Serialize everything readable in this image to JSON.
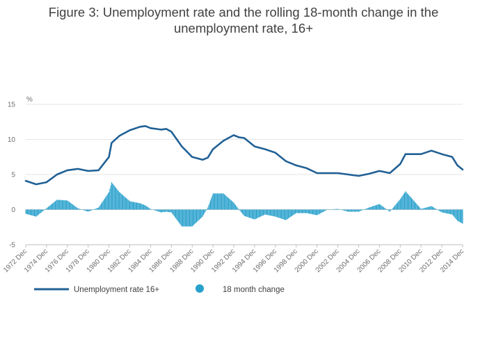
{
  "chart_data": {
    "type": "line+bar",
    "title_lines": [
      "Figure 3: Unemployment rate and the rolling 18-month change in the",
      "unemployment rate, 16+"
    ],
    "y_unit": "%",
    "ylim": [
      -5,
      15
    ],
    "y_ticks": [
      -5,
      0,
      5,
      10,
      15
    ],
    "x_ticks": [
      "1972 Dec",
      "1974 Dec",
      "1976 Dec",
      "1978 Dec",
      "1980 Dec",
      "1982 Dec",
      "1984 Dec",
      "1986 Dec",
      "1988 Dec",
      "1990 Dec",
      "1992 Dec",
      "1994 Dec",
      "1996 Dec",
      "1998 Dec",
      "2000 Dec",
      "2002 Dec",
      "2004 Dec",
      "2006 Dec",
      "2008 Dec",
      "2010 Dec",
      "2012 Dec",
      "2014 Dec"
    ],
    "x_range": [
      "1972 Dec",
      "2014 Dec"
    ],
    "grid": true,
    "legend_position": "bottom-left",
    "series": [
      {
        "name": "Unemployment rate 16+",
        "kind": "line",
        "color": "#206095",
        "points": [
          [
            "1972 Dec",
            4.1
          ],
          [
            "1973 Dec",
            3.6
          ],
          [
            "1974 Dec",
            3.9
          ],
          [
            "1975 Dec",
            5.0
          ],
          [
            "1976 Dec",
            5.6
          ],
          [
            "1977 Dec",
            5.8
          ],
          [
            "1978 Dec",
            5.5
          ],
          [
            "1979 Dec",
            5.6
          ],
          [
            "1980 Dec",
            7.5
          ],
          [
            "1981 Mar",
            9.5
          ],
          [
            "1981 Dec",
            10.5
          ],
          [
            "1982 Dec",
            11.3
          ],
          [
            "1983 Dec",
            11.8
          ],
          [
            "1984 Jun",
            11.9
          ],
          [
            "1984 Dec",
            11.6
          ],
          [
            "1985 Dec",
            11.4
          ],
          [
            "1986 Jun",
            11.5
          ],
          [
            "1986 Dec",
            11.1
          ],
          [
            "1987 Dec",
            9.0
          ],
          [
            "1988 Dec",
            7.5
          ],
          [
            "1989 Dec",
            7.1
          ],
          [
            "1990 Jun",
            7.4
          ],
          [
            "1990 Dec",
            8.6
          ],
          [
            "1991 Dec",
            9.8
          ],
          [
            "1992 Dec",
            10.6
          ],
          [
            "1993 Jun",
            10.3
          ],
          [
            "1993 Dec",
            10.2
          ],
          [
            "1994 Dec",
            9.0
          ],
          [
            "1995 Dec",
            8.6
          ],
          [
            "1996 Dec",
            8.1
          ],
          [
            "1997 Dec",
            6.9
          ],
          [
            "1998 Dec",
            6.3
          ],
          [
            "1999 Dec",
            5.9
          ],
          [
            "2000 Dec",
            5.2
          ],
          [
            "2001 Dec",
            5.2
          ],
          [
            "2002 Dec",
            5.2
          ],
          [
            "2003 Dec",
            5.0
          ],
          [
            "2004 Dec",
            4.8
          ],
          [
            "2005 Dec",
            5.1
          ],
          [
            "2006 Dec",
            5.5
          ],
          [
            "2007 Dec",
            5.2
          ],
          [
            "2008 Dec",
            6.5
          ],
          [
            "2009 Jun",
            7.9
          ],
          [
            "2009 Dec",
            7.9
          ],
          [
            "2010 Dec",
            7.9
          ],
          [
            "2011 Dec",
            8.4
          ],
          [
            "2012 Dec",
            7.9
          ],
          [
            "2013 Dec",
            7.5
          ],
          [
            "2014 Jun",
            6.3
          ],
          [
            "2014 Dec",
            5.7
          ]
        ]
      },
      {
        "name": "18 month change",
        "kind": "bar",
        "color": "#27a0cc",
        "points": [
          [
            "1972 Dec",
            -0.6
          ],
          [
            "1973 Dec",
            -1.0
          ],
          [
            "1974 Dec",
            0.2
          ],
          [
            "1975 Dec",
            1.4
          ],
          [
            "1976 Dec",
            1.3
          ],
          [
            "1977 Dec",
            0.2
          ],
          [
            "1978 Dec",
            -0.3
          ],
          [
            "1979 Dec",
            0.3
          ],
          [
            "1980 Dec",
            2.5
          ],
          [
            "1981 Mar",
            3.9
          ],
          [
            "1981 Dec",
            2.5
          ],
          [
            "1982 Dec",
            1.2
          ],
          [
            "1983 Dec",
            0.9
          ],
          [
            "1984 Jun",
            0.6
          ],
          [
            "1984 Dec",
            0.1
          ],
          [
            "1985 Dec",
            -0.4
          ],
          [
            "1986 Jun",
            -0.3
          ],
          [
            "1986 Dec",
            -0.4
          ],
          [
            "1987 Dec",
            -2.4
          ],
          [
            "1988 Dec",
            -2.4
          ],
          [
            "1989 Dec",
            -1.0
          ],
          [
            "1990 Jun",
            0.3
          ],
          [
            "1990 Dec",
            2.3
          ],
          [
            "1991 Dec",
            2.3
          ],
          [
            "1992 Dec",
            1.0
          ],
          [
            "1993 Jun",
            0.0
          ],
          [
            "1993 Dec",
            -0.9
          ],
          [
            "1994 Dec",
            -1.4
          ],
          [
            "1995 Dec",
            -0.7
          ],
          [
            "1996 Dec",
            -1.0
          ],
          [
            "1997 Dec",
            -1.5
          ],
          [
            "1998 Dec",
            -0.5
          ],
          [
            "1999 Dec",
            -0.5
          ],
          [
            "2000 Dec",
            -0.8
          ],
          [
            "2001 Dec",
            0.0
          ],
          [
            "2002 Dec",
            0.1
          ],
          [
            "2003 Dec",
            -0.3
          ],
          [
            "2004 Dec",
            -0.3
          ],
          [
            "2005 Dec",
            0.3
          ],
          [
            "2006 Dec",
            0.8
          ],
          [
            "2007 Dec",
            -0.3
          ],
          [
            "2008 Dec",
            1.5
          ],
          [
            "2009 Jun",
            2.6
          ],
          [
            "2009 Dec",
            1.8
          ],
          [
            "2010 Dec",
            0.1
          ],
          [
            "2011 Dec",
            0.5
          ],
          [
            "2012 Dec",
            -0.4
          ],
          [
            "2013 Dec",
            -0.7
          ],
          [
            "2014 Jun",
            -1.6
          ],
          [
            "2014 Dec",
            -2.0
          ]
        ]
      }
    ]
  }
}
